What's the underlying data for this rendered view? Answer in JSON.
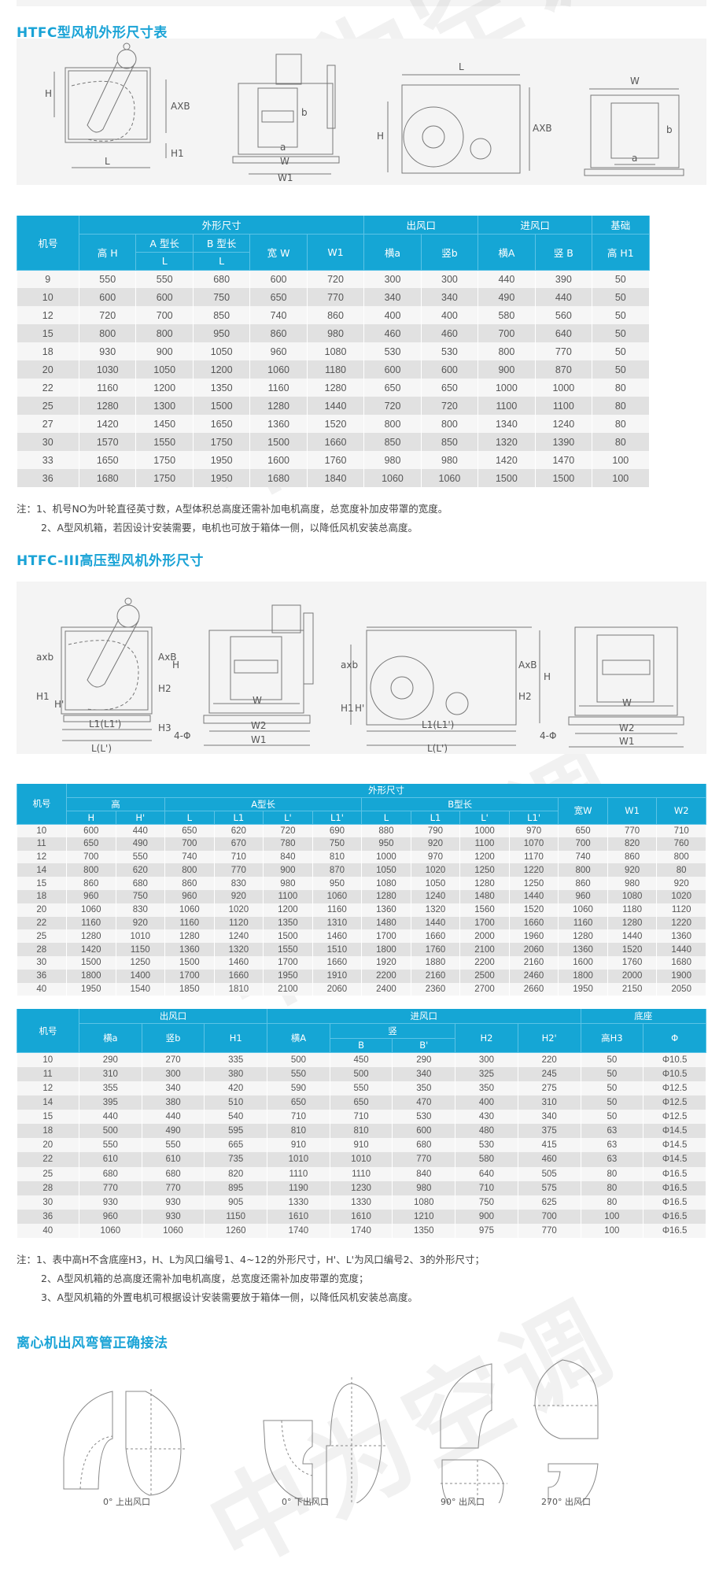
{
  "watermark": "中为空调",
  "colors": {
    "accent": "#1aa3d6",
    "header_bg": "#15a6d5",
    "row_light": "#f6f6f6",
    "row_dark": "#e1e1e1"
  },
  "section1": {
    "title": "HTFC型风机外形尺寸表",
    "diagram_labels": {
      "d1": [
        "H",
        "AXB",
        "H1",
        "L"
      ],
      "d2": [
        "b",
        "a",
        "W",
        "W1"
      ],
      "d3": [
        "L",
        "H",
        "AXB"
      ],
      "d4": [
        "W",
        "b",
        "a"
      ]
    },
    "table": {
      "header": {
        "no": "机号",
        "outer": "外形尺寸",
        "outlet": "出风口",
        "inlet": "进风口",
        "base": "基础",
        "h": "高 H",
        "a_len": "A 型长",
        "b_len": "B 型长",
        "w": "宽 W",
        "w1": "W1",
        "oa": "横a",
        "ob": "竖b",
        "ia": "横A",
        "ib": "竖 B",
        "h1": "高 H1",
        "l_a": "L",
        "l_b": "L"
      },
      "rows": [
        [
          "9",
          "550",
          "550",
          "680",
          "600",
          "720",
          "300",
          "300",
          "440",
          "390",
          "50"
        ],
        [
          "10",
          "600",
          "600",
          "750",
          "650",
          "770",
          "340",
          "340",
          "490",
          "440",
          "50"
        ],
        [
          "12",
          "720",
          "700",
          "850",
          "740",
          "860",
          "400",
          "400",
          "580",
          "560",
          "50"
        ],
        [
          "15",
          "800",
          "800",
          "950",
          "860",
          "980",
          "460",
          "460",
          "700",
          "640",
          "50"
        ],
        [
          "18",
          "930",
          "900",
          "1050",
          "960",
          "1080",
          "530",
          "530",
          "800",
          "770",
          "50"
        ],
        [
          "20",
          "1030",
          "1050",
          "1200",
          "1060",
          "1180",
          "600",
          "600",
          "900",
          "870",
          "50"
        ],
        [
          "22",
          "1160",
          "1200",
          "1350",
          "1160",
          "1280",
          "650",
          "650",
          "1000",
          "1000",
          "80"
        ],
        [
          "25",
          "1280",
          "1300",
          "1500",
          "1280",
          "1440",
          "720",
          "720",
          "1100",
          "1100",
          "80"
        ],
        [
          "27",
          "1420",
          "1450",
          "1650",
          "1360",
          "1520",
          "800",
          "800",
          "1340",
          "1240",
          "80"
        ],
        [
          "30",
          "1570",
          "1550",
          "1750",
          "1500",
          "1660",
          "850",
          "850",
          "1320",
          "1390",
          "80"
        ],
        [
          "33",
          "1650",
          "1750",
          "1950",
          "1600",
          "1760",
          "980",
          "980",
          "1420",
          "1470",
          "100"
        ],
        [
          "36",
          "1680",
          "1750",
          "1950",
          "1680",
          "1840",
          "1060",
          "1060",
          "1500",
          "1500",
          "100"
        ]
      ]
    },
    "notes": [
      "注：1、机号NO为叶轮直径英寸数，A型体积总高度还需补加电机高度，总宽度补加皮带罩的宽度。",
      "2、A型风机箱，若因设计安装需要，电机也可放于箱体一侧，以降低风机安装总高度。"
    ]
  },
  "section2": {
    "title": "HTFC-III高压型风机外形尺寸",
    "diagram_labels": {
      "d1": [
        "axb",
        "H1",
        "H'",
        "AxB",
        "H2",
        "H",
        "H3",
        "L1(L1')",
        "L(L')"
      ],
      "d2": [
        "W",
        "W2",
        "W1",
        "4-Φ"
      ],
      "d3": [
        "axb",
        "H1",
        "H'",
        "AxB",
        "H2",
        "H",
        "L1(L1')",
        "L(L')"
      ],
      "d4": [
        "W",
        "W2",
        "W1",
        "4-Φ"
      ]
    },
    "table_a": {
      "header": {
        "no": "机号",
        "outer": "外形尺寸",
        "high": "高",
        "a_len": "A型长",
        "b_len": "B型长",
        "w": "宽W",
        "w1": "W1",
        "w2": "W2",
        "sub": [
          "H",
          "H'",
          "L",
          "L1",
          "L'",
          "L1'",
          "L",
          "L1",
          "L'",
          "L1'"
        ]
      },
      "rows": [
        [
          "10",
          "600",
          "440",
          "650",
          "620",
          "720",
          "690",
          "880",
          "790",
          "1000",
          "970",
          "650",
          "770",
          "710"
        ],
        [
          "11",
          "650",
          "490",
          "700",
          "670",
          "780",
          "750",
          "950",
          "920",
          "1100",
          "1070",
          "700",
          "820",
          "760"
        ],
        [
          "12",
          "700",
          "550",
          "740",
          "710",
          "840",
          "810",
          "1000",
          "970",
          "1200",
          "1170",
          "740",
          "860",
          "800"
        ],
        [
          "14",
          "800",
          "620",
          "800",
          "770",
          "900",
          "870",
          "1050",
          "1020",
          "1250",
          "1220",
          "800",
          "920",
          "80"
        ],
        [
          "15",
          "860",
          "680",
          "860",
          "830",
          "980",
          "950",
          "1080",
          "1050",
          "1280",
          "1250",
          "860",
          "980",
          "920"
        ],
        [
          "18",
          "960",
          "750",
          "960",
          "920",
          "1100",
          "1060",
          "1280",
          "1240",
          "1480",
          "1440",
          "960",
          "1080",
          "1020"
        ],
        [
          "20",
          "1060",
          "830",
          "1060",
          "1020",
          "1200",
          "1160",
          "1360",
          "1320",
          "1560",
          "1520",
          "1060",
          "1180",
          "1120"
        ],
        [
          "22",
          "1160",
          "920",
          "1160",
          "1120",
          "1350",
          "1310",
          "1480",
          "1440",
          "1700",
          "1660",
          "1160",
          "1280",
          "1220"
        ],
        [
          "25",
          "1280",
          "1010",
          "1280",
          "1240",
          "1500",
          "1460",
          "1700",
          "1660",
          "2000",
          "1960",
          "1280",
          "1440",
          "1360"
        ],
        [
          "28",
          "1420",
          "1150",
          "1360",
          "1320",
          "1550",
          "1510",
          "1800",
          "1760",
          "2100",
          "2060",
          "1360",
          "1520",
          "1440"
        ],
        [
          "30",
          "1500",
          "1250",
          "1500",
          "1460",
          "1700",
          "1660",
          "1920",
          "1880",
          "2200",
          "2160",
          "1600",
          "1760",
          "1680"
        ],
        [
          "36",
          "1800",
          "1400",
          "1700",
          "1660",
          "1950",
          "1910",
          "2200",
          "2160",
          "2500",
          "2460",
          "1800",
          "2000",
          "1900"
        ],
        [
          "40",
          "1950",
          "1540",
          "1850",
          "1810",
          "2100",
          "2060",
          "2400",
          "2360",
          "2700",
          "2660",
          "1950",
          "2150",
          "2050"
        ]
      ]
    },
    "table_b": {
      "header": {
        "no": "机号",
        "outlet": "出风口",
        "inlet": "进风口",
        "base": "底座",
        "oa": "横a",
        "ob": "竖b",
        "h1": "H1",
        "ia": "横A",
        "vert": "竖",
        "b": "B",
        "b2": "B'",
        "h2": "H2",
        "h2p": "H2'",
        "h3": "高H3",
        "phi": "Φ"
      },
      "rows": [
        [
          "10",
          "290",
          "270",
          "335",
          "500",
          "450",
          "290",
          "300",
          "220",
          "50",
          "Φ10.5"
        ],
        [
          "11",
          "310",
          "300",
          "380",
          "550",
          "500",
          "340",
          "325",
          "245",
          "50",
          "Φ10.5"
        ],
        [
          "12",
          "355",
          "340",
          "420",
          "590",
          "550",
          "350",
          "350",
          "275",
          "50",
          "Φ12.5"
        ],
        [
          "14",
          "395",
          "380",
          "510",
          "650",
          "650",
          "470",
          "400",
          "310",
          "50",
          "Φ12.5"
        ],
        [
          "15",
          "440",
          "440",
          "540",
          "710",
          "710",
          "530",
          "430",
          "340",
          "50",
          "Φ12.5"
        ],
        [
          "18",
          "500",
          "490",
          "595",
          "810",
          "810",
          "600",
          "480",
          "375",
          "63",
          "Φ14.5"
        ],
        [
          "20",
          "550",
          "550",
          "665",
          "910",
          "910",
          "680",
          "530",
          "415",
          "63",
          "Φ14.5"
        ],
        [
          "22",
          "610",
          "610",
          "735",
          "1010",
          "1010",
          "770",
          "580",
          "460",
          "63",
          "Φ14.5"
        ],
        [
          "25",
          "680",
          "680",
          "820",
          "1110",
          "1110",
          "840",
          "640",
          "505",
          "80",
          "Φ16.5"
        ],
        [
          "28",
          "770",
          "770",
          "895",
          "1190",
          "1230",
          "980",
          "710",
          "575",
          "80",
          "Φ16.5"
        ],
        [
          "30",
          "930",
          "930",
          "905",
          "1330",
          "1330",
          "1080",
          "750",
          "625",
          "80",
          "Φ16.5"
        ],
        [
          "36",
          "960",
          "930",
          "1150",
          "1610",
          "1610",
          "1210",
          "900",
          "700",
          "100",
          "Φ16.5"
        ],
        [
          "40",
          "1060",
          "1060",
          "1260",
          "1740",
          "1740",
          "1350",
          "975",
          "770",
          "100",
          "Φ16.5"
        ]
      ]
    },
    "notes": [
      "注：1、表中高H不含底座H3，H、L为风口编号1、4~12的外形尺寸，H'、L'为风口编号2、3的外形尺寸；",
      "2、A型风机箱的总高度还需补加电机高度，总宽度还需补加皮带罩的宽度；",
      "3、A型风机箱的外置电机可根据设计安装需要放于箱体一侧，以降低风机安装总高度。"
    ]
  },
  "section3": {
    "title": "离心机出风弯管正确接法",
    "captions": [
      "0° 上出风口",
      "0° 下出风口",
      "90° 出风口",
      "270° 出风口"
    ]
  }
}
